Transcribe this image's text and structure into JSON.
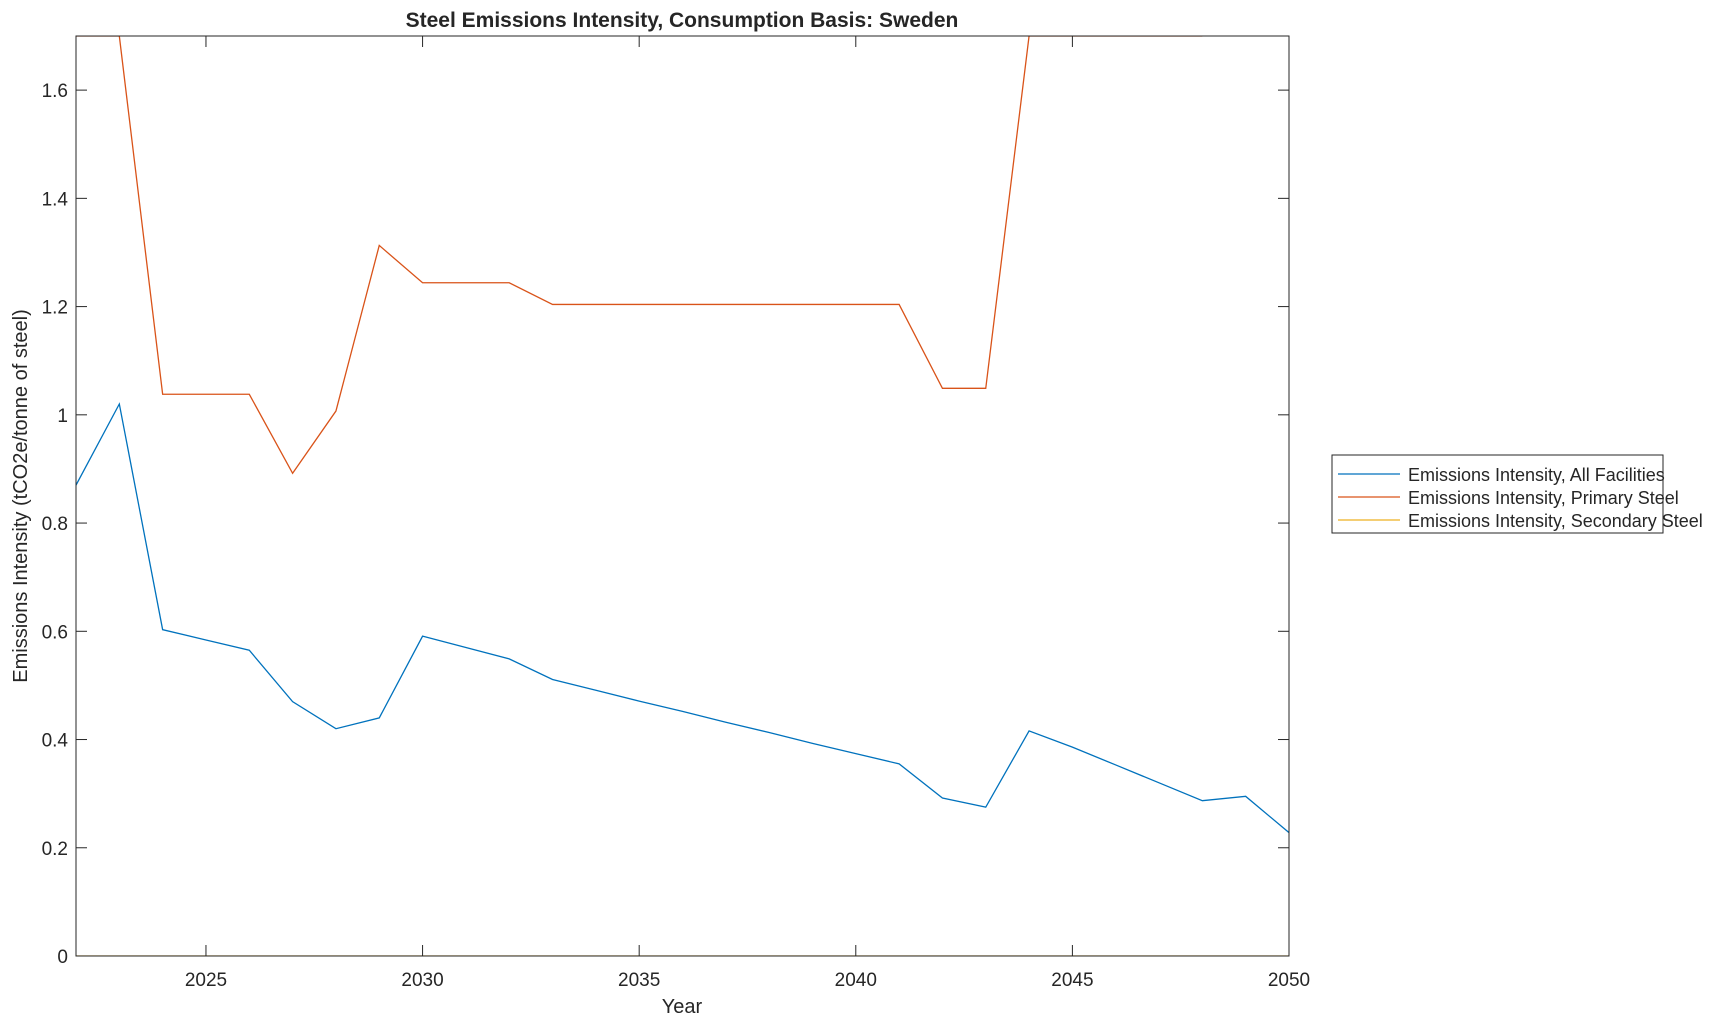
{
  "chart_data": {
    "type": "line",
    "title": "Steel Emissions Intensity, Consumption Basis: Sweden",
    "xlabel": "Year",
    "ylabel": "Emissions Intensity (tCO2e/tonne of steel)",
    "xlim": [
      2022,
      2050
    ],
    "ylim": [
      0,
      1.7
    ],
    "xticks": [
      2025,
      2030,
      2035,
      2040,
      2045,
      2050
    ],
    "yticks": [
      0,
      0.2,
      0.4,
      0.6,
      0.8,
      1,
      1.2,
      1.4,
      1.6
    ],
    "ytick_labels": [
      "0",
      "0.2",
      "0.4",
      "0.6",
      "0.8",
      "1",
      "1.2",
      "1.4",
      "1.6"
    ],
    "grid": false,
    "legend_position": "outside-right",
    "x": [
      2022,
      2023,
      2024,
      2025,
      2026,
      2027,
      2028,
      2029,
      2030,
      2031,
      2032,
      2033,
      2034,
      2035,
      2036,
      2037,
      2038,
      2039,
      2040,
      2041,
      2042,
      2043,
      2044,
      2045,
      2046,
      2047,
      2048,
      2049,
      2050
    ],
    "series": [
      {
        "name": "Emissions Intensity, All Facilities",
        "color": "#0072BD",
        "values": [
          0.87,
          1.02,
          0.603,
          0.584,
          0.565,
          0.47,
          0.42,
          0.44,
          0.591,
          0.57,
          0.549,
          0.511,
          0.491,
          0.471,
          0.452,
          0.432,
          0.413,
          0.393,
          0.374,
          0.355,
          0.292,
          0.275,
          0.416,
          0.386,
          0.353,
          0.32,
          0.287,
          0.295,
          0.228
        ]
      },
      {
        "name": "Emissions Intensity, Primary Steel",
        "color": "#D95319",
        "values": [
          1.7,
          1.7,
          1.038,
          1.038,
          1.038,
          0.892,
          1.007,
          1.313,
          1.244,
          1.244,
          1.244,
          1.204,
          1.204,
          1.204,
          1.204,
          1.204,
          1.204,
          1.204,
          1.204,
          1.204,
          1.049,
          1.049,
          1.7,
          1.7,
          1.7,
          1.7,
          1.7,
          null,
          null
        ]
      },
      {
        "name": "Emissions Intensity, Secondary Steel",
        "color": "#EDB120",
        "values": [
          0,
          0,
          0,
          0,
          0,
          0,
          0,
          0,
          0,
          0,
          0,
          0,
          0,
          0,
          0,
          0,
          0,
          0,
          0,
          0,
          0,
          0,
          0,
          0,
          0,
          0,
          0,
          0,
          0
        ]
      }
    ]
  }
}
